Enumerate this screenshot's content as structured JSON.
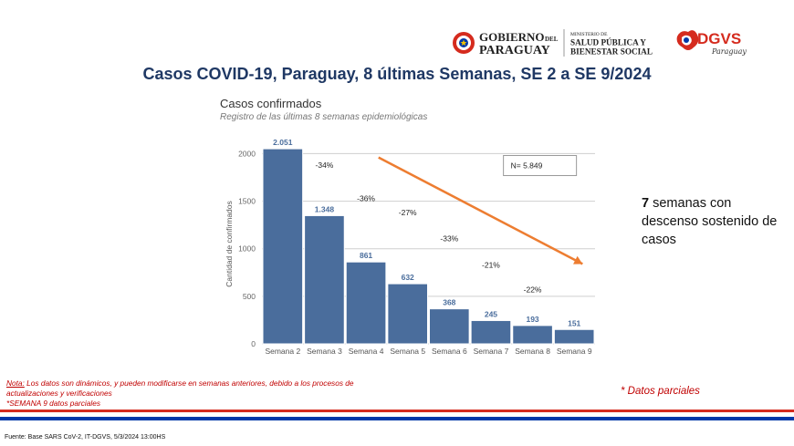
{
  "header": {
    "logo_gobierno_line1": "GOBIERNO",
    "logo_gobierno_del": "DEL",
    "logo_gobierno_line2": "PARAGUAY",
    "logo_ministerio_line1": "MINISTERIO DE",
    "logo_ministerio_line2": "SALUD PÚBLICA Y",
    "logo_ministerio_line3": "BIENESTAR SOCIAL",
    "logo_dgvs": "DGVS",
    "logo_dgvs_sub": "Paraguay"
  },
  "title": "Casos COVID-19, Paraguay, 8 últimas Semanas, SE 2 a SE 9/2024",
  "chart_header": {
    "title": "Casos confirmados",
    "subtitle": "Registro de las últimas 8 semanas epidemiológicas"
  },
  "side_note": {
    "bold": "7",
    "rest": " semanas con descenso sostenido de casos"
  },
  "footnote": {
    "label": "Nota:",
    "text": " Los datos son dinámicos, y pueden modificarse en semanas anteriores, debido a los procesos de actualizaciones y verificaciones",
    "line2": "*SEMANA 9 datos parciales"
  },
  "partial_note": "* Datos parciales",
  "source": "Fuente: Base SARS CoV-2, IT-DGVS, 5/3/2024 13:00HS",
  "colors": {
    "bar": "#4a6d9c",
    "trend_arrow": "#ed7d31",
    "title": "#1f3864",
    "note_red": "#c00000"
  },
  "chart_data": {
    "type": "bar",
    "categories": [
      "Semana 2",
      "Semana 3",
      "Semana 4",
      "Semana 5",
      "Semana 6",
      "Semana 7",
      "Semana 8",
      "Semana 9"
    ],
    "values": [
      2051,
      1348,
      861,
      632,
      368,
      245,
      193,
      151
    ],
    "value_labels": [
      "2.051",
      "1.348",
      "861",
      "632",
      "368",
      "245",
      "193",
      "151"
    ],
    "change_labels": [
      "-34%",
      "-36%",
      "-27%",
      "-33%",
      "-21%",
      "-22%"
    ],
    "ylabel": "Cantidad de confirmados",
    "yticks": [
      0,
      500,
      1000,
      1500,
      2000
    ],
    "ylim": [
      0,
      2100
    ],
    "total_label": "N= 5.849",
    "trend_arrow": "descending, from Semana 4 to Semana 9",
    "grid": true
  }
}
